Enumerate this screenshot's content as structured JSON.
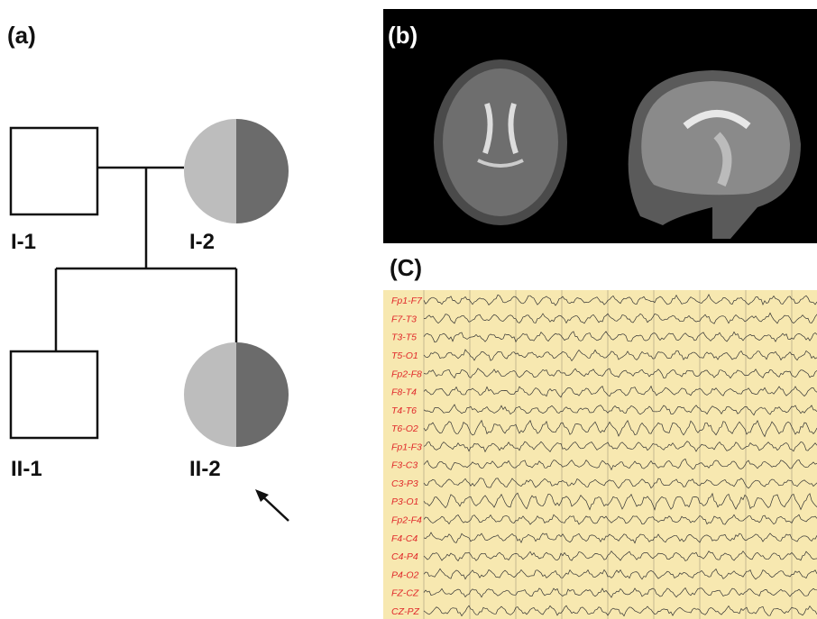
{
  "panels": {
    "a": {
      "label": "(a)",
      "individuals": [
        "I-1",
        "I-2",
        "II-1",
        "II-2"
      ]
    },
    "b": {
      "label": "(b)"
    },
    "c": {
      "label": "(C)",
      "channels": [
        "Fp1-F7",
        "F7-T3",
        "T3-T5",
        "T5-O1",
        "Fp2-F8",
        "F8-T4",
        "T4-T6",
        "T6-O2",
        "Fp1-F3",
        "F3-C3",
        "C3-P3",
        "P3-O1",
        "Fp2-F4",
        "F4-C4",
        "C4-P4",
        "P4-O2",
        "FZ-CZ",
        "CZ-PZ"
      ]
    }
  }
}
